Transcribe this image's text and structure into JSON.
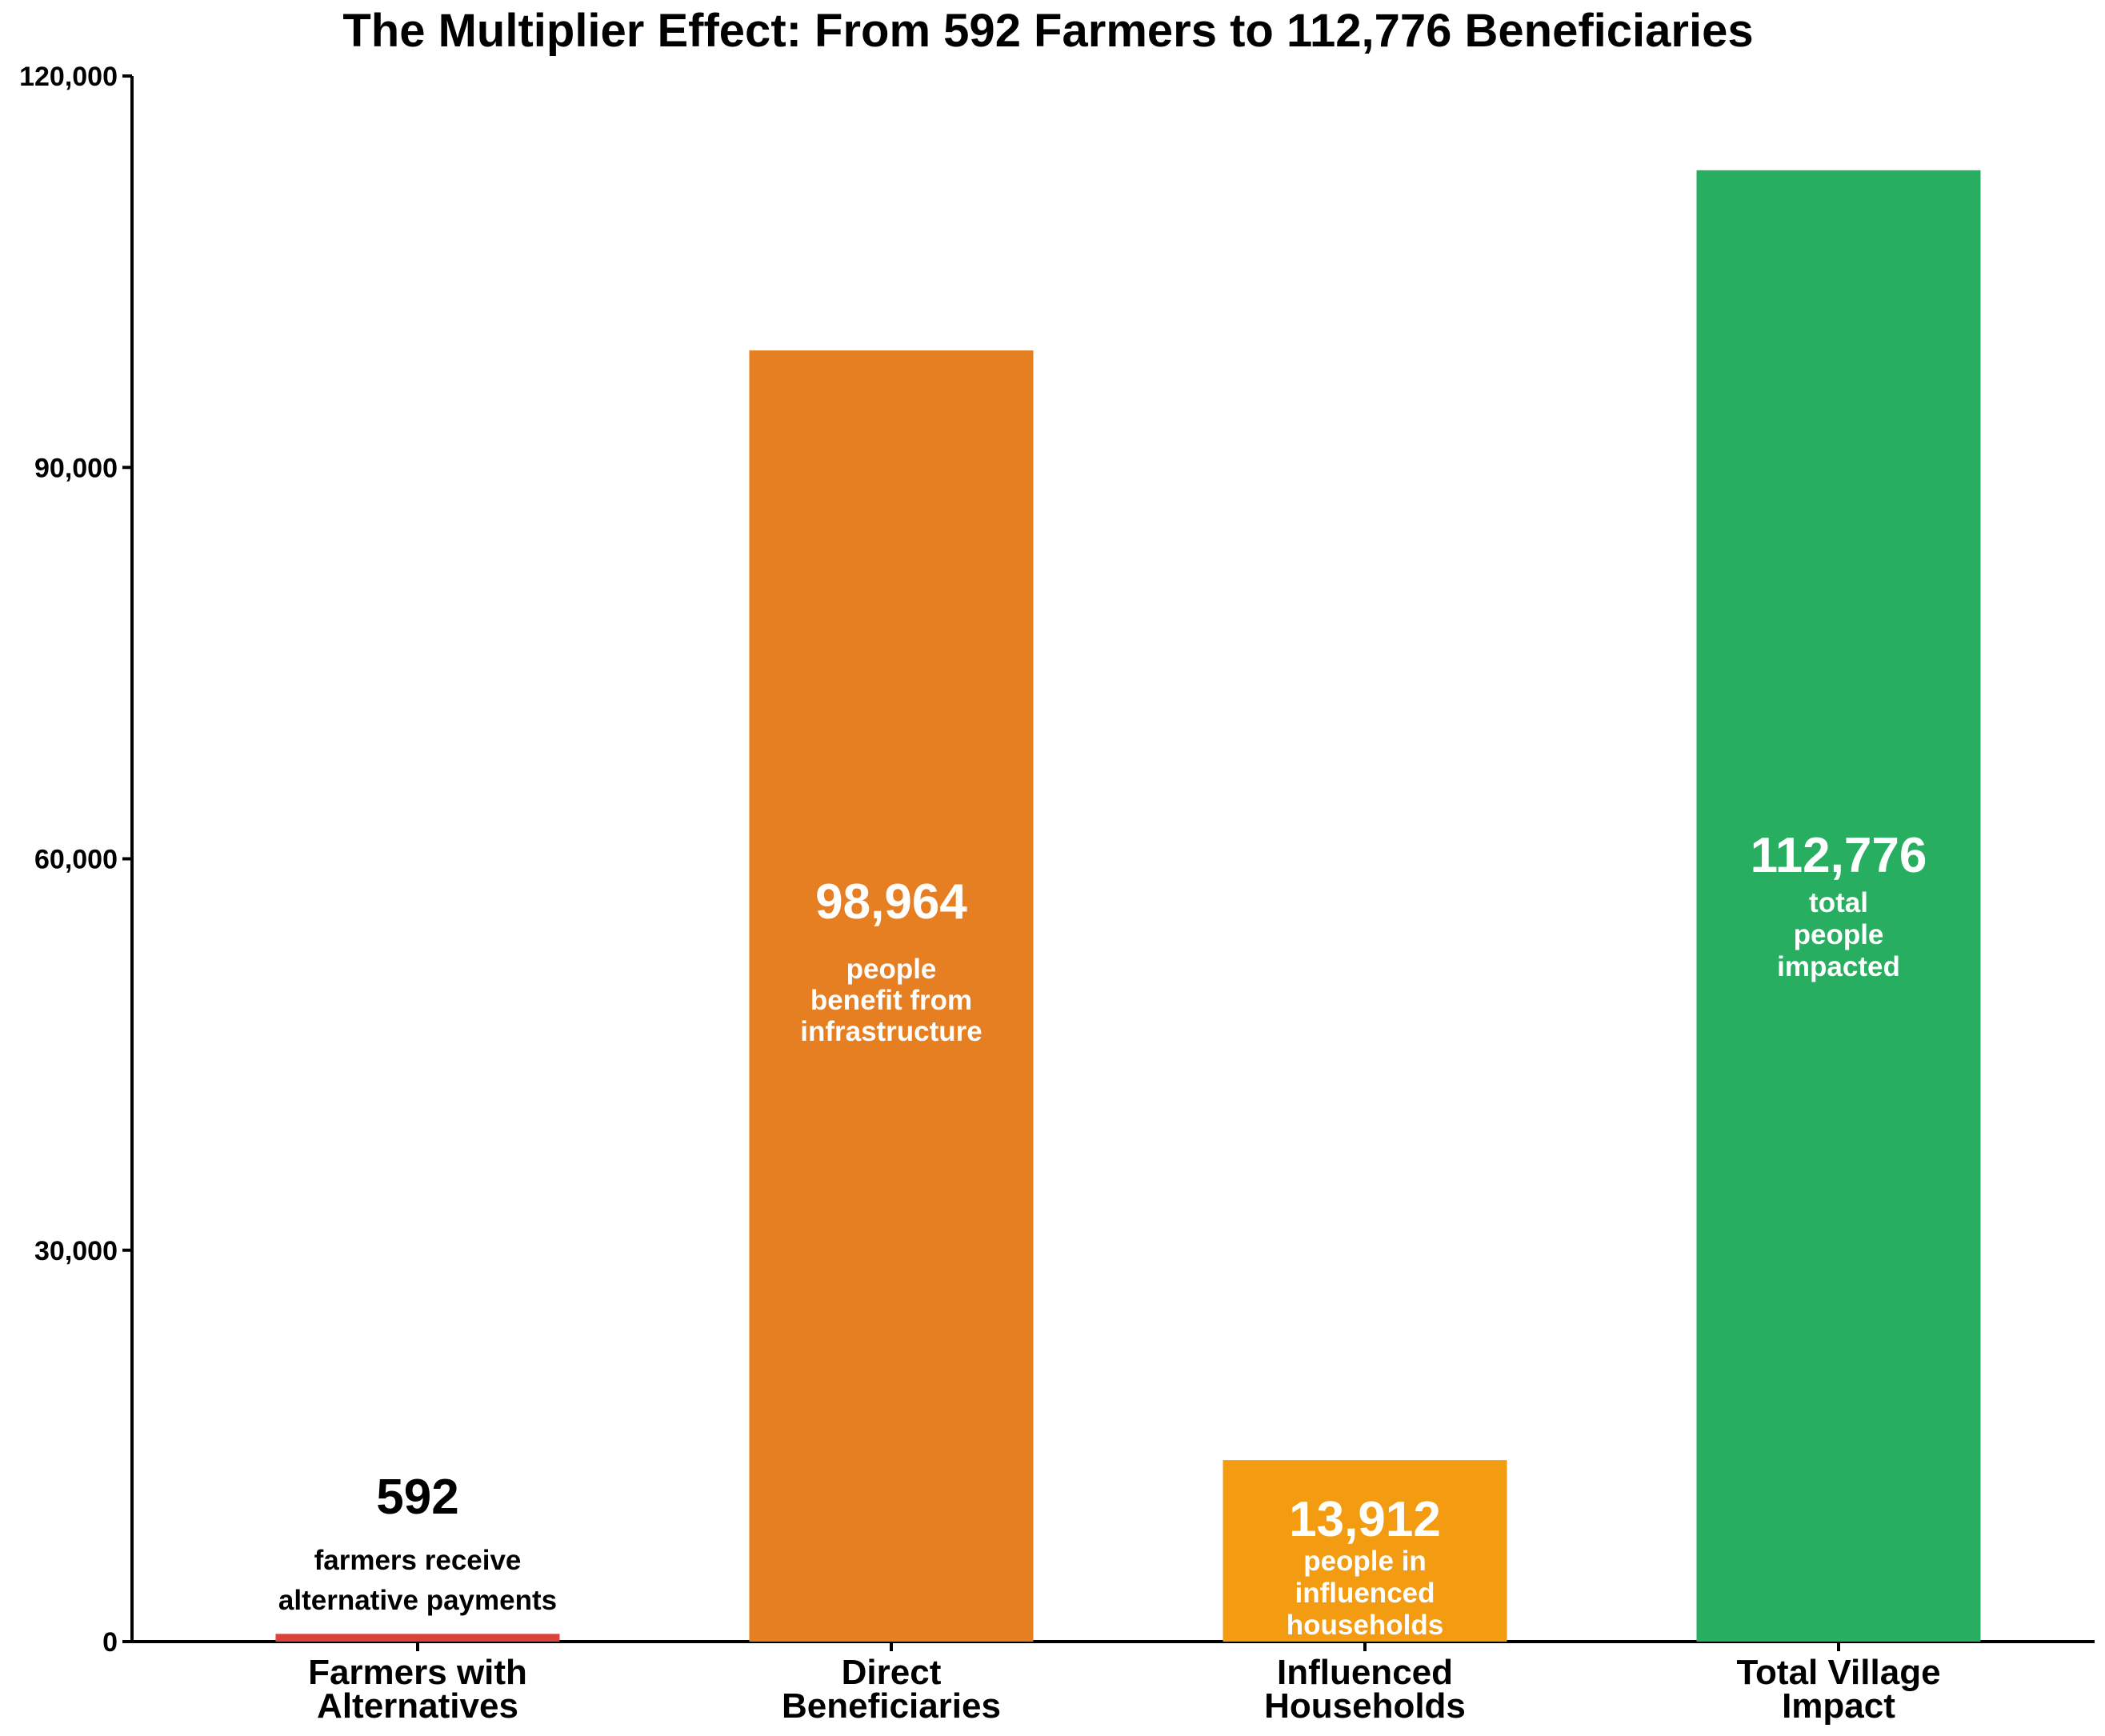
{
  "chart_data": {
    "type": "bar",
    "title": "The Multiplier Effect: From 592 Farmers to 112,776 Beneficiaries",
    "xlabel": "",
    "ylabel": "",
    "ylim": [
      0,
      120000
    ],
    "yticks": [
      0,
      30000,
      60000,
      90000,
      120000
    ],
    "ytick_labels": [
      "0",
      "30,000",
      "60,000",
      "90,000",
      "120,000"
    ],
    "grid": false,
    "categories": [
      [
        "Farmers with",
        "Alternatives"
      ],
      [
        "Direct",
        "Beneficiaries"
      ],
      [
        "Influenced",
        "Households"
      ],
      [
        "Total Village",
        "Impact"
      ]
    ],
    "values": [
      592,
      98964,
      13912,
      112776
    ],
    "colors": [
      "#d9433b",
      "#e67e22",
      "#f39c12",
      "#27ae60"
    ],
    "annotations": [
      {
        "value_label": "592",
        "text": [
          "farmers receive",
          "alternative payments"
        ],
        "color": "#000000"
      },
      {
        "value_label": "98,964",
        "text": [
          "people",
          "benefit from",
          "infrastructure"
        ],
        "color": "#ffffff"
      },
      {
        "value_label": "13,912",
        "text": [
          "people in",
          "influenced",
          "households"
        ],
        "color": "#ffffff"
      },
      {
        "value_label": "112,776",
        "text": [
          "total",
          "people",
          "impacted"
        ],
        "color": "#ffffff"
      }
    ]
  }
}
